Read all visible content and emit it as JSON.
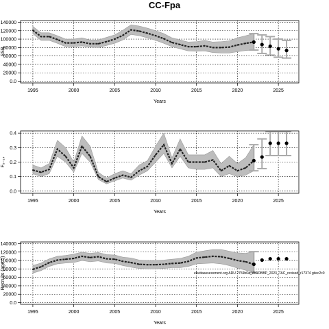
{
  "title": "CC-Fpa",
  "chart_data": [
    {
      "type": "line",
      "xlabel": "Years",
      "ylabel": "SSB",
      "xlim": [
        1993.5,
        2027.5
      ],
      "ylim": [
        -4000,
        144000
      ],
      "xticks": [
        1995,
        2000,
        2005,
        2010,
        2015,
        2020,
        2025
      ],
      "yticks": [
        0,
        20000,
        40000,
        60000,
        80000,
        100000,
        120000,
        140000
      ],
      "grid": true,
      "series": [
        {
          "x": [
            1995,
            1996,
            1997,
            1998,
            1999,
            2000,
            2001,
            2002,
            2003,
            2004,
            2005,
            2006,
            2007,
            2008,
            2009,
            2010,
            2011,
            2012,
            2013,
            2014,
            2015,
            2016,
            2017,
            2018,
            2019,
            2020,
            2021,
            2022
          ],
          "values": [
            121000,
            106000,
            106000,
            99000,
            91000,
            91000,
            93000,
            89000,
            89000,
            94000,
            100000,
            109000,
            122000,
            119000,
            114000,
            108000,
            101000,
            92000,
            87000,
            82000,
            82000,
            84000,
            80000,
            80000,
            81000,
            86000,
            90000,
            93000
          ],
          "lower": [
            113000,
            97000,
            97000,
            90000,
            82000,
            82000,
            84000,
            81000,
            80000,
            85000,
            90000,
            98000,
            111000,
            108000,
            103000,
            97000,
            90000,
            82000,
            77000,
            72000,
            71000,
            72000,
            68000,
            67000,
            67000,
            70000,
            73000,
            74000
          ],
          "upper": [
            130000,
            115000,
            115000,
            108000,
            100000,
            100000,
            103000,
            98000,
            98000,
            104000,
            110000,
            121000,
            134000,
            131000,
            126000,
            120000,
            113000,
            103000,
            98000,
            93000,
            94000,
            97000,
            93000,
            94000,
            96000,
            103000,
            108000,
            113000
          ]
        }
      ],
      "projection": {
        "x": [
          2022,
          2023,
          2024,
          2025,
          2026
        ],
        "values": [
          93000,
          87000,
          83000,
          77000,
          73000
        ],
        "lower": [
          74000,
          66000,
          62000,
          57000,
          55000
        ],
        "upper": [
          113000,
          110000,
          106000,
          100000,
          97000
        ]
      }
    },
    {
      "type": "line",
      "xlabel": "Years",
      "ylabel": "F₅₋₁₄",
      "xlim": [
        1993.5,
        2027.5
      ],
      "ylim": [
        -0.015,
        0.415
      ],
      "xticks": [
        1995,
        2000,
        2005,
        2010,
        2015,
        2020,
        2025
      ],
      "yticks": [
        0.0,
        0.1,
        0.2,
        0.3,
        0.4
      ],
      "grid": true,
      "series": [
        {
          "x": [
            1995,
            1996,
            1997,
            1998,
            1999,
            2000,
            2001,
            2002,
            2003,
            2004,
            2005,
            2006,
            2007,
            2008,
            2009,
            2010,
            2011,
            2012,
            2013,
            2014,
            2015,
            2016,
            2017,
            2018,
            2019,
            2020,
            2021,
            2022
          ],
          "values": [
            0.145,
            0.13,
            0.15,
            0.29,
            0.24,
            0.16,
            0.31,
            0.24,
            0.1,
            0.065,
            0.09,
            0.11,
            0.095,
            0.14,
            0.17,
            0.25,
            0.32,
            0.19,
            0.29,
            0.2,
            0.2,
            0.2,
            0.215,
            0.14,
            0.175,
            0.14,
            0.16,
            0.21
          ],
          "lower": [
            0.12,
            0.1,
            0.12,
            0.24,
            0.2,
            0.13,
            0.26,
            0.2,
            0.08,
            0.05,
            0.07,
            0.09,
            0.075,
            0.11,
            0.14,
            0.2,
            0.26,
            0.16,
            0.24,
            0.16,
            0.15,
            0.15,
            0.16,
            0.1,
            0.12,
            0.1,
            0.11,
            0.14
          ],
          "upper": [
            0.18,
            0.16,
            0.19,
            0.35,
            0.3,
            0.2,
            0.38,
            0.31,
            0.13,
            0.09,
            0.12,
            0.14,
            0.12,
            0.18,
            0.21,
            0.31,
            0.4,
            0.23,
            0.36,
            0.25,
            0.25,
            0.25,
            0.28,
            0.19,
            0.24,
            0.19,
            0.23,
            0.32
          ]
        }
      ],
      "projection": {
        "x": [
          2022,
          2023,
          2024,
          2025,
          2026
        ],
        "values": [
          0.21,
          0.235,
          0.33,
          0.33,
          0.33
        ],
        "lower": [
          0.14,
          0.155,
          0.245,
          0.245,
          0.245
        ],
        "upper": [
          0.32,
          0.36,
          0.41,
          0.41,
          0.41
        ]
      }
    },
    {
      "type": "line",
      "xlabel": "Years",
      "ylabel": "Recruits (age 0)",
      "xlim": [
        1993.5,
        2027.5
      ],
      "ylim": [
        -4000,
        144000
      ],
      "xticks": [
        1995,
        2000,
        2005,
        2010,
        2015,
        2020,
        2025
      ],
      "yticks": [
        0,
        20000,
        40000,
        60000,
        80000,
        100000,
        120000,
        140000
      ],
      "grid": true,
      "series": [
        {
          "x": [
            1995,
            1996,
            1997,
            1998,
            1999,
            2000,
            2001,
            2002,
            2003,
            2004,
            2005,
            2006,
            2007,
            2008,
            2009,
            2010,
            2011,
            2012,
            2013,
            2014,
            2015,
            2016,
            2017,
            2018,
            2019,
            2020,
            2021,
            2022
          ],
          "values": [
            79000,
            85000,
            95000,
            101000,
            103000,
            105000,
            110000,
            107000,
            109000,
            104000,
            103000,
            98000,
            95000,
            91000,
            90000,
            90000,
            91000,
            93000,
            94000,
            98000,
            106000,
            108000,
            110000,
            109000,
            105000,
            100000,
            97000,
            91000
          ],
          "lower": [
            70000,
            76000,
            86000,
            92000,
            94000,
            95000,
            100000,
            97000,
            99000,
            94000,
            93000,
            88000,
            84000,
            81000,
            80000,
            80000,
            81000,
            83000,
            83000,
            86000,
            92000,
            93000,
            94000,
            92000,
            88000,
            82000,
            77000,
            71000
          ],
          "upper": [
            88000,
            94000,
            104000,
            110000,
            112000,
            115000,
            120000,
            117000,
            119000,
            114000,
            113000,
            108000,
            106000,
            101000,
            100000,
            100000,
            101000,
            103000,
            105000,
            110000,
            120000,
            123000,
            126000,
            126000,
            122000,
            118000,
            117000,
            121000
          ]
        }
      ],
      "projection": {
        "x": [
          2022,
          2023,
          2024,
          2025,
          2026
        ],
        "values": [
          91000,
          101000,
          104000,
          104000,
          104000
        ],
        "lower": [
          71000,
          101000,
          104000,
          104000,
          104000
        ],
        "upper": [
          121000,
          101000,
          104000,
          104000,
          104000
        ]
      },
      "annotation": "ebuttaassessment.org ARU 2759b6a_WGOBBP_2023_TAC_revised_r17374  gitec2c0"
    }
  ]
}
